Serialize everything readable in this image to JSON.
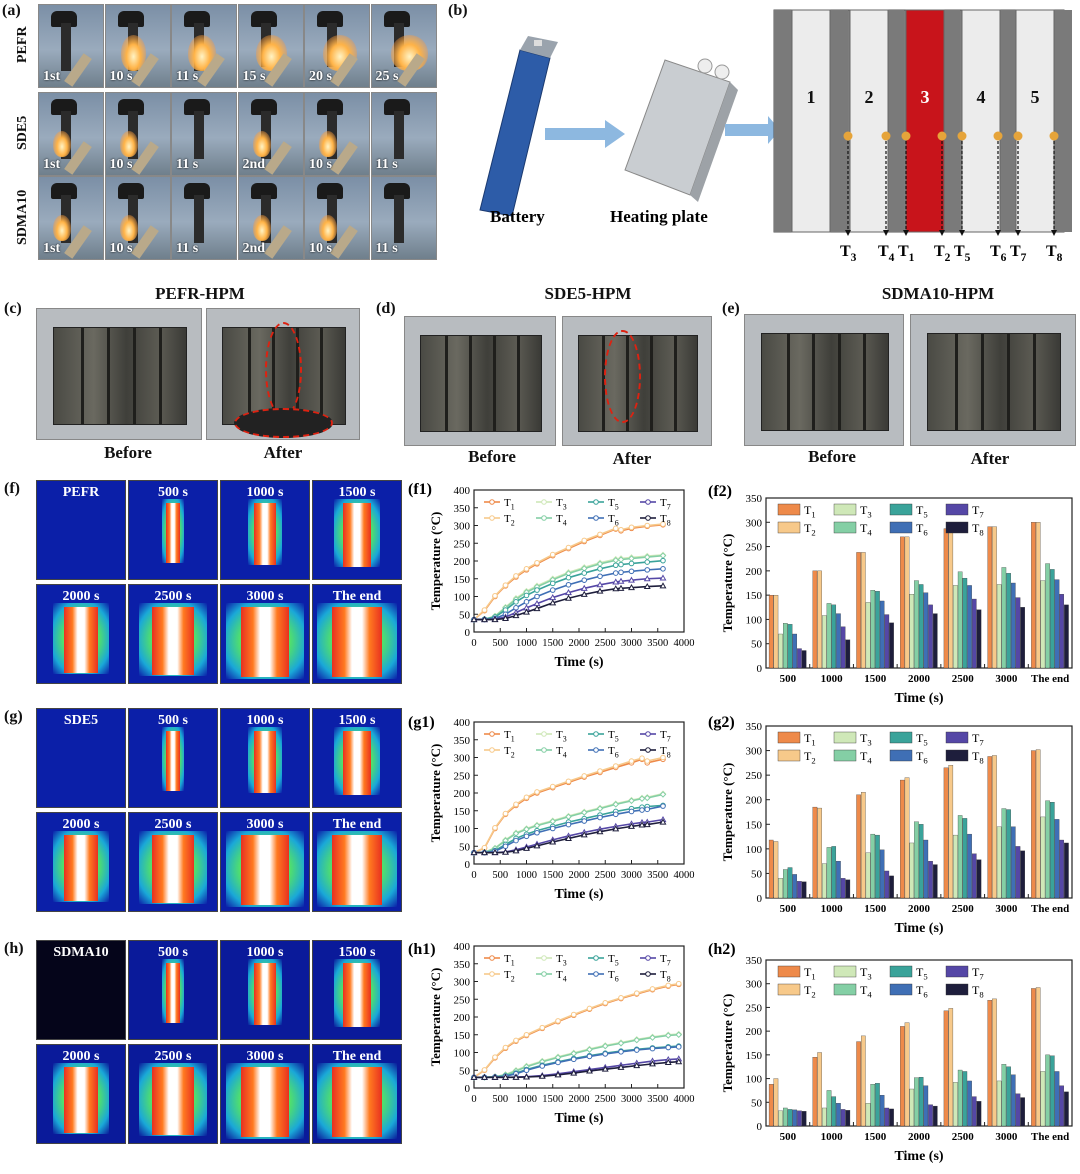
{
  "panels": {
    "a": "(a)",
    "b": "(b)",
    "c": "(c)",
    "d": "(d)",
    "e": "(e)",
    "f": "(f)",
    "g": "(g)",
    "h": "(h)",
    "f1": "(f1)",
    "f2": "(f2)",
    "g1": "(g1)",
    "g2": "(g2)",
    "h1": "(h1)",
    "h2": "(h2)"
  },
  "flame_test": {
    "rows": [
      {
        "label": "PEFR",
        "captions": [
          "1st",
          "10 s",
          "11 s",
          "15 s",
          "20 s",
          "25 s"
        ]
      },
      {
        "label": "SDE5",
        "captions": [
          "1st",
          "10 s",
          "11 s",
          "2nd",
          "10 s",
          "11 s"
        ]
      },
      {
        "label": "SDMA10",
        "captions": [
          "1st",
          "10 s",
          "11 s",
          "2nd",
          "10 s",
          "11 s"
        ]
      }
    ]
  },
  "schematic": {
    "battery": "Battery",
    "heating_plate": "Heating plate",
    "cells": [
      "1",
      "2",
      "3",
      "4",
      "5"
    ],
    "sensors": [
      "T3",
      "T4",
      "T1",
      "T2",
      "T5",
      "T6",
      "T7",
      "T8"
    ]
  },
  "modules": [
    {
      "title": "PEFR-HPM",
      "before": "Before",
      "after": "After"
    },
    {
      "title": "SDE5-HPM",
      "before": "Before",
      "after": "After"
    },
    {
      "title": "SDMA10-HPM",
      "before": "Before",
      "after": "After"
    }
  ],
  "thermal": [
    {
      "label": "PEFR",
      "frames": [
        "500 s",
        "1000 s",
        "1500 s",
        "2000 s",
        "2500 s",
        "3000 s",
        "The end"
      ]
    },
    {
      "label": "SDE5",
      "frames": [
        "500 s",
        "1000 s",
        "1500 s",
        "2000 s",
        "2500 s",
        "3000 s",
        "The end"
      ]
    },
    {
      "label": "SDMA10",
      "frames": [
        "500 s",
        "1000 s",
        "1500 s",
        "2000 s",
        "2500 s",
        "3000 s",
        "The end"
      ]
    }
  ],
  "colors": {
    "T1": "#ee8a4a",
    "T2": "#f7c98a",
    "T3": "#cfe8b8",
    "T4": "#84cfa5",
    "T5": "#3aa39a",
    "T6": "#3f6fb5",
    "T7": "#5547a6",
    "T8": "#1e1e3c",
    "heater": "#c8141b",
    "sensor_dot": "#e6a43a"
  },
  "chart_data": [
    {
      "id": "f1",
      "type": "line",
      "xlabel": "Time (s)",
      "ylabel": "Temperature (°C)",
      "xlim": [
        0,
        4000
      ],
      "ylim": [
        0,
        400
      ],
      "xticks": [
        "0",
        "500",
        "1000",
        "1500",
        "2000",
        "2500",
        "3000",
        "3500",
        "4000"
      ],
      "yticks": [
        "0",
        "50",
        "100",
        "150",
        "200",
        "250",
        "300",
        "350",
        "400"
      ],
      "legend": [
        "T1",
        "T2",
        "T3",
        "T4",
        "T5",
        "T6",
        "T7",
        "T8"
      ],
      "x": [
        0,
        200,
        400,
        600,
        800,
        1000,
        1200,
        1500,
        1800,
        2100,
        2400,
        2700,
        2800,
        3000,
        3300,
        3600
      ],
      "series": [
        {
          "name": "T1",
          "values": [
            35,
            60,
            100,
            130,
            155,
            175,
            192,
            215,
            235,
            255,
            272,
            290,
            285,
            292,
            298,
            302
          ]
        },
        {
          "name": "T2",
          "values": [
            35,
            62,
            102,
            132,
            158,
            178,
            195,
            218,
            238,
            258,
            275,
            292,
            288,
            295,
            300,
            304
          ]
        },
        {
          "name": "T3",
          "values": [
            35,
            36,
            45,
            70,
            95,
            115,
            130,
            150,
            168,
            182,
            195,
            205,
            207,
            210,
            214,
            217
          ]
        },
        {
          "name": "T4",
          "values": [
            35,
            36,
            44,
            68,
            92,
            112,
            127,
            147,
            165,
            179,
            192,
            202,
            204,
            207,
            211,
            215
          ]
        },
        {
          "name": "T5",
          "values": [
            35,
            36,
            42,
            62,
            85,
            103,
            118,
            137,
            153,
            166,
            178,
            188,
            190,
            193,
            197,
            201
          ]
        },
        {
          "name": "T6",
          "values": [
            35,
            35,
            38,
            50,
            68,
            85,
            100,
            118,
            133,
            146,
            157,
            166,
            168,
            171,
            175,
            178
          ]
        },
        {
          "name": "T7",
          "values": [
            35,
            35,
            36,
            42,
            55,
            68,
            80,
            97,
            111,
            123,
            133,
            141,
            143,
            146,
            150,
            152
          ]
        },
        {
          "name": "T8",
          "values": [
            35,
            35,
            35,
            38,
            46,
            56,
            66,
            82,
            95,
            106,
            115,
            122,
            123,
            125,
            128,
            130
          ]
        }
      ]
    },
    {
      "id": "f2",
      "type": "bar",
      "xlabel": "Time (s)",
      "ylabel": "Temperature (°C)",
      "ylim": [
        0,
        350
      ],
      "yticks": [
        "0",
        "50",
        "100",
        "150",
        "200",
        "250",
        "300",
        "350"
      ],
      "categories": [
        "500",
        "1000",
        "1500",
        "2000",
        "2500",
        "3000",
        "The end"
      ],
      "legend": [
        "T1",
        "T2",
        "T3",
        "T4",
        "T5",
        "T6",
        "T7",
        "T8"
      ],
      "series": [
        {
          "name": "T1",
          "values": [
            150,
            200,
            238,
            270,
            287,
            291,
            300
          ]
        },
        {
          "name": "T2",
          "values": [
            150,
            200,
            238,
            270,
            287,
            291,
            300
          ]
        },
        {
          "name": "T3",
          "values": [
            70,
            108,
            135,
            152,
            170,
            172,
            180
          ]
        },
        {
          "name": "T4",
          "values": [
            92,
            133,
            160,
            180,
            198,
            207,
            215
          ]
        },
        {
          "name": "T5",
          "values": [
            90,
            130,
            158,
            172,
            185,
            195,
            203
          ]
        },
        {
          "name": "T6",
          "values": [
            70,
            112,
            138,
            155,
            170,
            175,
            182
          ]
        },
        {
          "name": "T7",
          "values": [
            40,
            85,
            110,
            130,
            142,
            145,
            152
          ]
        },
        {
          "name": "T8",
          "values": [
            36,
            58,
            93,
            112,
            120,
            125,
            130
          ]
        }
      ]
    },
    {
      "id": "g1",
      "type": "line",
      "xlabel": "Time (s)",
      "ylabel": "Temperature (°C)",
      "xlim": [
        0,
        4000
      ],
      "ylim": [
        0,
        400
      ],
      "xticks": [
        "0",
        "500",
        "1000",
        "1500",
        "2000",
        "2500",
        "3000",
        "3500",
        "4000"
      ],
      "yticks": [
        "0",
        "50",
        "100",
        "150",
        "200",
        "250",
        "300",
        "350",
        "400"
      ],
      "legend": [
        "T1",
        "T2",
        "T3",
        "T4",
        "T5",
        "T6",
        "T7",
        "T8"
      ],
      "x": [
        0,
        200,
        400,
        600,
        800,
        1000,
        1200,
        1500,
        1800,
        2100,
        2400,
        2700,
        3000,
        3200,
        3300,
        3600
      ],
      "series": [
        {
          "name": "T1",
          "values": [
            32,
            45,
            100,
            140,
            165,
            185,
            200,
            215,
            230,
            245,
            258,
            272,
            285,
            295,
            285,
            295
          ]
        },
        {
          "name": "T2",
          "values": [
            32,
            46,
            102,
            142,
            168,
            188,
            203,
            218,
            233,
            248,
            262,
            276,
            290,
            298,
            290,
            300
          ]
        },
        {
          "name": "T3",
          "values": [
            32,
            33,
            45,
            68,
            88,
            100,
            110,
            122,
            135,
            147,
            158,
            170,
            180,
            186,
            188,
            198
          ]
        },
        {
          "name": "T4",
          "values": [
            32,
            33,
            44,
            66,
            86,
            98,
            108,
            120,
            133,
            145,
            156,
            168,
            178,
            184,
            186,
            196
          ]
        },
        {
          "name": "T5",
          "values": [
            32,
            32,
            38,
            55,
            72,
            84,
            94,
            106,
            118,
            128,
            138,
            148,
            156,
            160,
            162,
            165
          ]
        },
        {
          "name": "T6",
          "values": [
            32,
            32,
            36,
            50,
            66,
            78,
            88,
            100,
            111,
            121,
            131,
            140,
            148,
            152,
            154,
            163
          ]
        },
        {
          "name": "T7",
          "values": [
            32,
            32,
            32,
            34,
            40,
            48,
            56,
            68,
            79,
            89,
            98,
            106,
            113,
            117,
            118,
            125
          ]
        },
        {
          "name": "T8",
          "values": [
            32,
            32,
            32,
            33,
            37,
            44,
            51,
            62,
            72,
            82,
            91,
            99,
            106,
            110,
            111,
            118
          ]
        }
      ]
    },
    {
      "id": "g2",
      "type": "bar",
      "xlabel": "Time (s)",
      "ylabel": "Temperature (°C)",
      "ylim": [
        0,
        350
      ],
      "yticks": [
        "0",
        "50",
        "100",
        "150",
        "200",
        "250",
        "300",
        "350"
      ],
      "categories": [
        "500",
        "1000",
        "1500",
        "2000",
        "2500",
        "3000",
        "The end"
      ],
      "legend": [
        "T1",
        "T2",
        "T3",
        "T4",
        "T5",
        "T6",
        "T7",
        "T8"
      ],
      "series": [
        {
          "name": "T1",
          "values": [
            118,
            185,
            210,
            240,
            265,
            288,
            300
          ]
        },
        {
          "name": "T2",
          "values": [
            115,
            183,
            215,
            245,
            270,
            290,
            302
          ]
        },
        {
          "name": "T3",
          "values": [
            40,
            70,
            92,
            112,
            128,
            145,
            165
          ]
        },
        {
          "name": "T4",
          "values": [
            58,
            103,
            130,
            155,
            168,
            182,
            198
          ]
        },
        {
          "name": "T5",
          "values": [
            62,
            105,
            128,
            150,
            162,
            180,
            195
          ]
        },
        {
          "name": "T6",
          "values": [
            48,
            75,
            98,
            118,
            130,
            145,
            160
          ]
        },
        {
          "name": "T7",
          "values": [
            34,
            40,
            55,
            75,
            90,
            105,
            118
          ]
        },
        {
          "name": "T8",
          "values": [
            33,
            37,
            45,
            68,
            78,
            96,
            112
          ]
        }
      ]
    },
    {
      "id": "h1",
      "type": "line",
      "xlabel": "Time (s)",
      "ylabel": "Temperature (°C)",
      "xlim": [
        0,
        4000
      ],
      "ylim": [
        0,
        400
      ],
      "xticks": [
        "0",
        "500",
        "1000",
        "1500",
        "2000",
        "2500",
        "3000",
        "3500",
        "4000"
      ],
      "yticks": [
        "0",
        "50",
        "100",
        "150",
        "200",
        "250",
        "300",
        "350",
        "400"
      ],
      "legend": [
        "T1",
        "T2",
        "T3",
        "T4",
        "T5",
        "T6",
        "T7",
        "T8"
      ],
      "x": [
        0,
        200,
        400,
        600,
        800,
        1000,
        1300,
        1600,
        1900,
        2200,
        2500,
        2800,
        3100,
        3400,
        3700,
        3900
      ],
      "series": [
        {
          "name": "T1",
          "values": [
            30,
            50,
            85,
            112,
            132,
            148,
            168,
            187,
            205,
            222,
            238,
            252,
            265,
            277,
            287,
            292
          ]
        },
        {
          "name": "T2",
          "values": [
            30,
            51,
            87,
            114,
            134,
            150,
            170,
            189,
            207,
            224,
            240,
            254,
            267,
            279,
            289,
            294
          ]
        },
        {
          "name": "T3",
          "values": [
            30,
            30,
            32,
            38,
            50,
            62,
            76,
            88,
            99,
            110,
            120,
            128,
            137,
            144,
            150,
            152
          ]
        },
        {
          "name": "T4",
          "values": [
            30,
            30,
            32,
            37,
            48,
            60,
            74,
            86,
            97,
            108,
            118,
            126,
            135,
            142,
            148,
            150
          ]
        },
        {
          "name": "T5",
          "values": [
            30,
            30,
            31,
            34,
            42,
            52,
            64,
            74,
            83,
            91,
            98,
            104,
            109,
            113,
            116,
            118
          ]
        },
        {
          "name": "T6",
          "values": [
            30,
            30,
            31,
            33,
            40,
            50,
            62,
            72,
            81,
            89,
            96,
            102,
            107,
            111,
            114,
            116
          ]
        },
        {
          "name": "T7",
          "values": [
            30,
            30,
            30,
            30,
            31,
            32,
            35,
            40,
            46,
            52,
            58,
            64,
            70,
            76,
            80,
            82
          ]
        },
        {
          "name": "T8",
          "values": [
            30,
            30,
            30,
            30,
            30,
            31,
            33,
            37,
            42,
            48,
            53,
            58,
            63,
            68,
            72,
            74
          ]
        }
      ]
    },
    {
      "id": "h2",
      "type": "bar",
      "xlabel": "Time (s)",
      "ylabel": "Temperature (°C)",
      "ylim": [
        0,
        350
      ],
      "yticks": [
        "0",
        "50",
        "100",
        "150",
        "200",
        "250",
        "300",
        "350"
      ],
      "categories": [
        "500",
        "1000",
        "1500",
        "2000",
        "2500",
        "3000",
        "The end"
      ],
      "legend": [
        "T1",
        "T2",
        "T3",
        "T4",
        "T5",
        "T6",
        "T7",
        "T8"
      ],
      "series": [
        {
          "name": "T1",
          "values": [
            88,
            145,
            178,
            210,
            243,
            265,
            290
          ]
        },
        {
          "name": "T2",
          "values": [
            100,
            155,
            190,
            218,
            248,
            268,
            292
          ]
        },
        {
          "name": "T3",
          "values": [
            32,
            38,
            48,
            78,
            92,
            95,
            115
          ]
        },
        {
          "name": "T4",
          "values": [
            38,
            75,
            88,
            102,
            118,
            130,
            150
          ]
        },
        {
          "name": "T5",
          "values": [
            35,
            62,
            90,
            103,
            115,
            125,
            148
          ]
        },
        {
          "name": "T6",
          "values": [
            34,
            48,
            65,
            85,
            95,
            108,
            115
          ]
        },
        {
          "name": "T7",
          "values": [
            32,
            35,
            38,
            45,
            62,
            68,
            85
          ]
        },
        {
          "name": "T8",
          "values": [
            31,
            33,
            36,
            42,
            52,
            60,
            72
          ]
        }
      ]
    }
  ]
}
